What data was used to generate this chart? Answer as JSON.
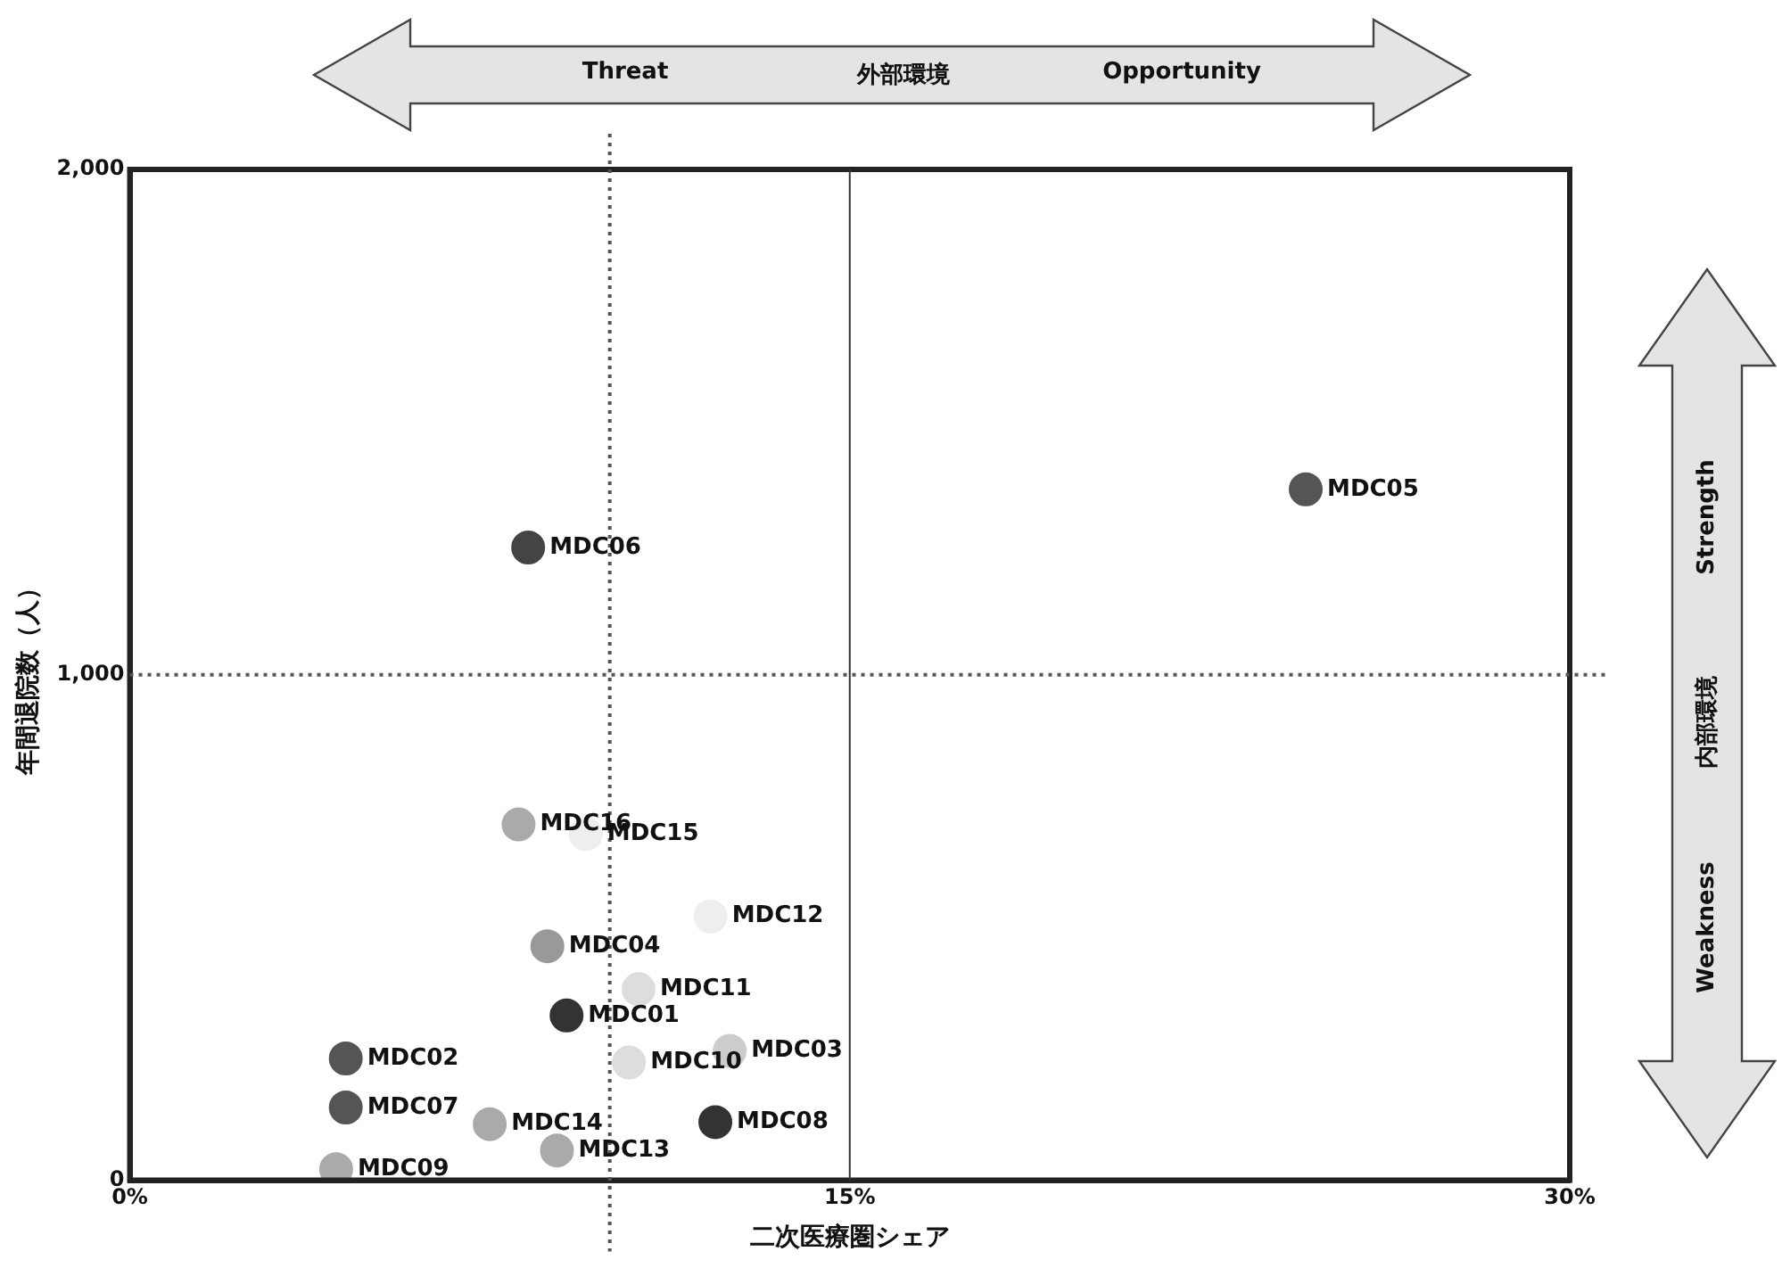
{
  "chart_data": {
    "type": "scatter",
    "xlabel": "二次医療圏シェア",
    "ylabel": "年間退院数（人）",
    "x": [
      24.5,
      8.3,
      8.1,
      8.7,
      4.5,
      4.5,
      4.3,
      7.5,
      8.9,
      9.1,
      10.4,
      10.6,
      12.1,
      12.5,
      12.2,
      9.5
    ],
    "values": [
      1367,
      1252,
      704,
      463,
      241,
      144,
      22,
      111,
      59,
      326,
      233,
      378,
      522,
      256,
      115,
      685
    ],
    "colors": [
      "#555555",
      "#444444",
      "#aaaaaa",
      "#999999",
      "#555555",
      "#555555",
      "#aaaaaa",
      "#aaaaaa",
      "#aaaaaa",
      "#333333",
      "#dddddd",
      "#dddddd",
      "#eeeeee",
      "#cccccc",
      "#333333",
      "#eeeeee"
    ],
    "marker": "circle",
    "legend": false,
    "xlim": [
      0,
      30
    ],
    "xticks": [
      {
        "value": 0,
        "label": "0%"
      },
      {
        "value": 15,
        "label": "15%"
      },
      {
        "value": 30,
        "label": "30%"
      }
    ],
    "ylim": [
      0,
      2000
    ],
    "yticks": [
      0,
      {
        "value": 1000,
        "label": "1,000"
      },
      {
        "value": 2000,
        "label": "2,000"
      }
    ],
    "ref_lines": [
      {
        "axis": "x",
        "value": 10,
        "line_style": "dotted",
        "color": "#555555"
      },
      {
        "axis": "x",
        "value": 15,
        "line_style": "solid",
        "color": "#333333"
      },
      {
        "axis": "y",
        "value": 1000,
        "line_style": "dotted",
        "color": "#555555"
      }
    ],
    "annotations": [
      "Threat",
      "外部環境",
      "Opportunity",
      "Strength",
      "内部環境",
      "Weakness",
      {
        "text": "MDC05",
        "x": 24.5,
        "y": 1367
      },
      {
        "text": "MDC06",
        "x": 8.3,
        "y": 1252
      },
      {
        "text": "MDC16",
        "x": 8.1,
        "y": 704
      },
      {
        "text": "MDC04",
        "x": 8.7,
        "y": 463
      },
      {
        "text": "MDC02",
        "x": 4.5,
        "y": 241
      },
      {
        "text": "MDC07",
        "x": 4.5,
        "y": 144
      },
      {
        "text": "MDC09",
        "x": 4.3,
        "y": 22
      },
      {
        "text": "MDC14",
        "x": 7.5,
        "y": 111
      },
      {
        "text": "MDC13",
        "x": 8.9,
        "y": 59
      },
      {
        "text": "MDC01",
        "x": 9.1,
        "y": 326
      },
      {
        "text": "MDC10",
        "x": 10.4,
        "y": 233
      },
      {
        "text": "MDC11",
        "x": 10.6,
        "y": 378
      },
      {
        "text": "MDC12",
        "x": 12.1,
        "y": 522
      },
      {
        "text": "MDC03",
        "x": 12.5,
        "y": 256
      },
      {
        "text": "MDC08",
        "x": 12.2,
        "y": 115
      },
      {
        "text": "MDC15",
        "x": 9.5,
        "y": 685
      }
    ]
  }
}
